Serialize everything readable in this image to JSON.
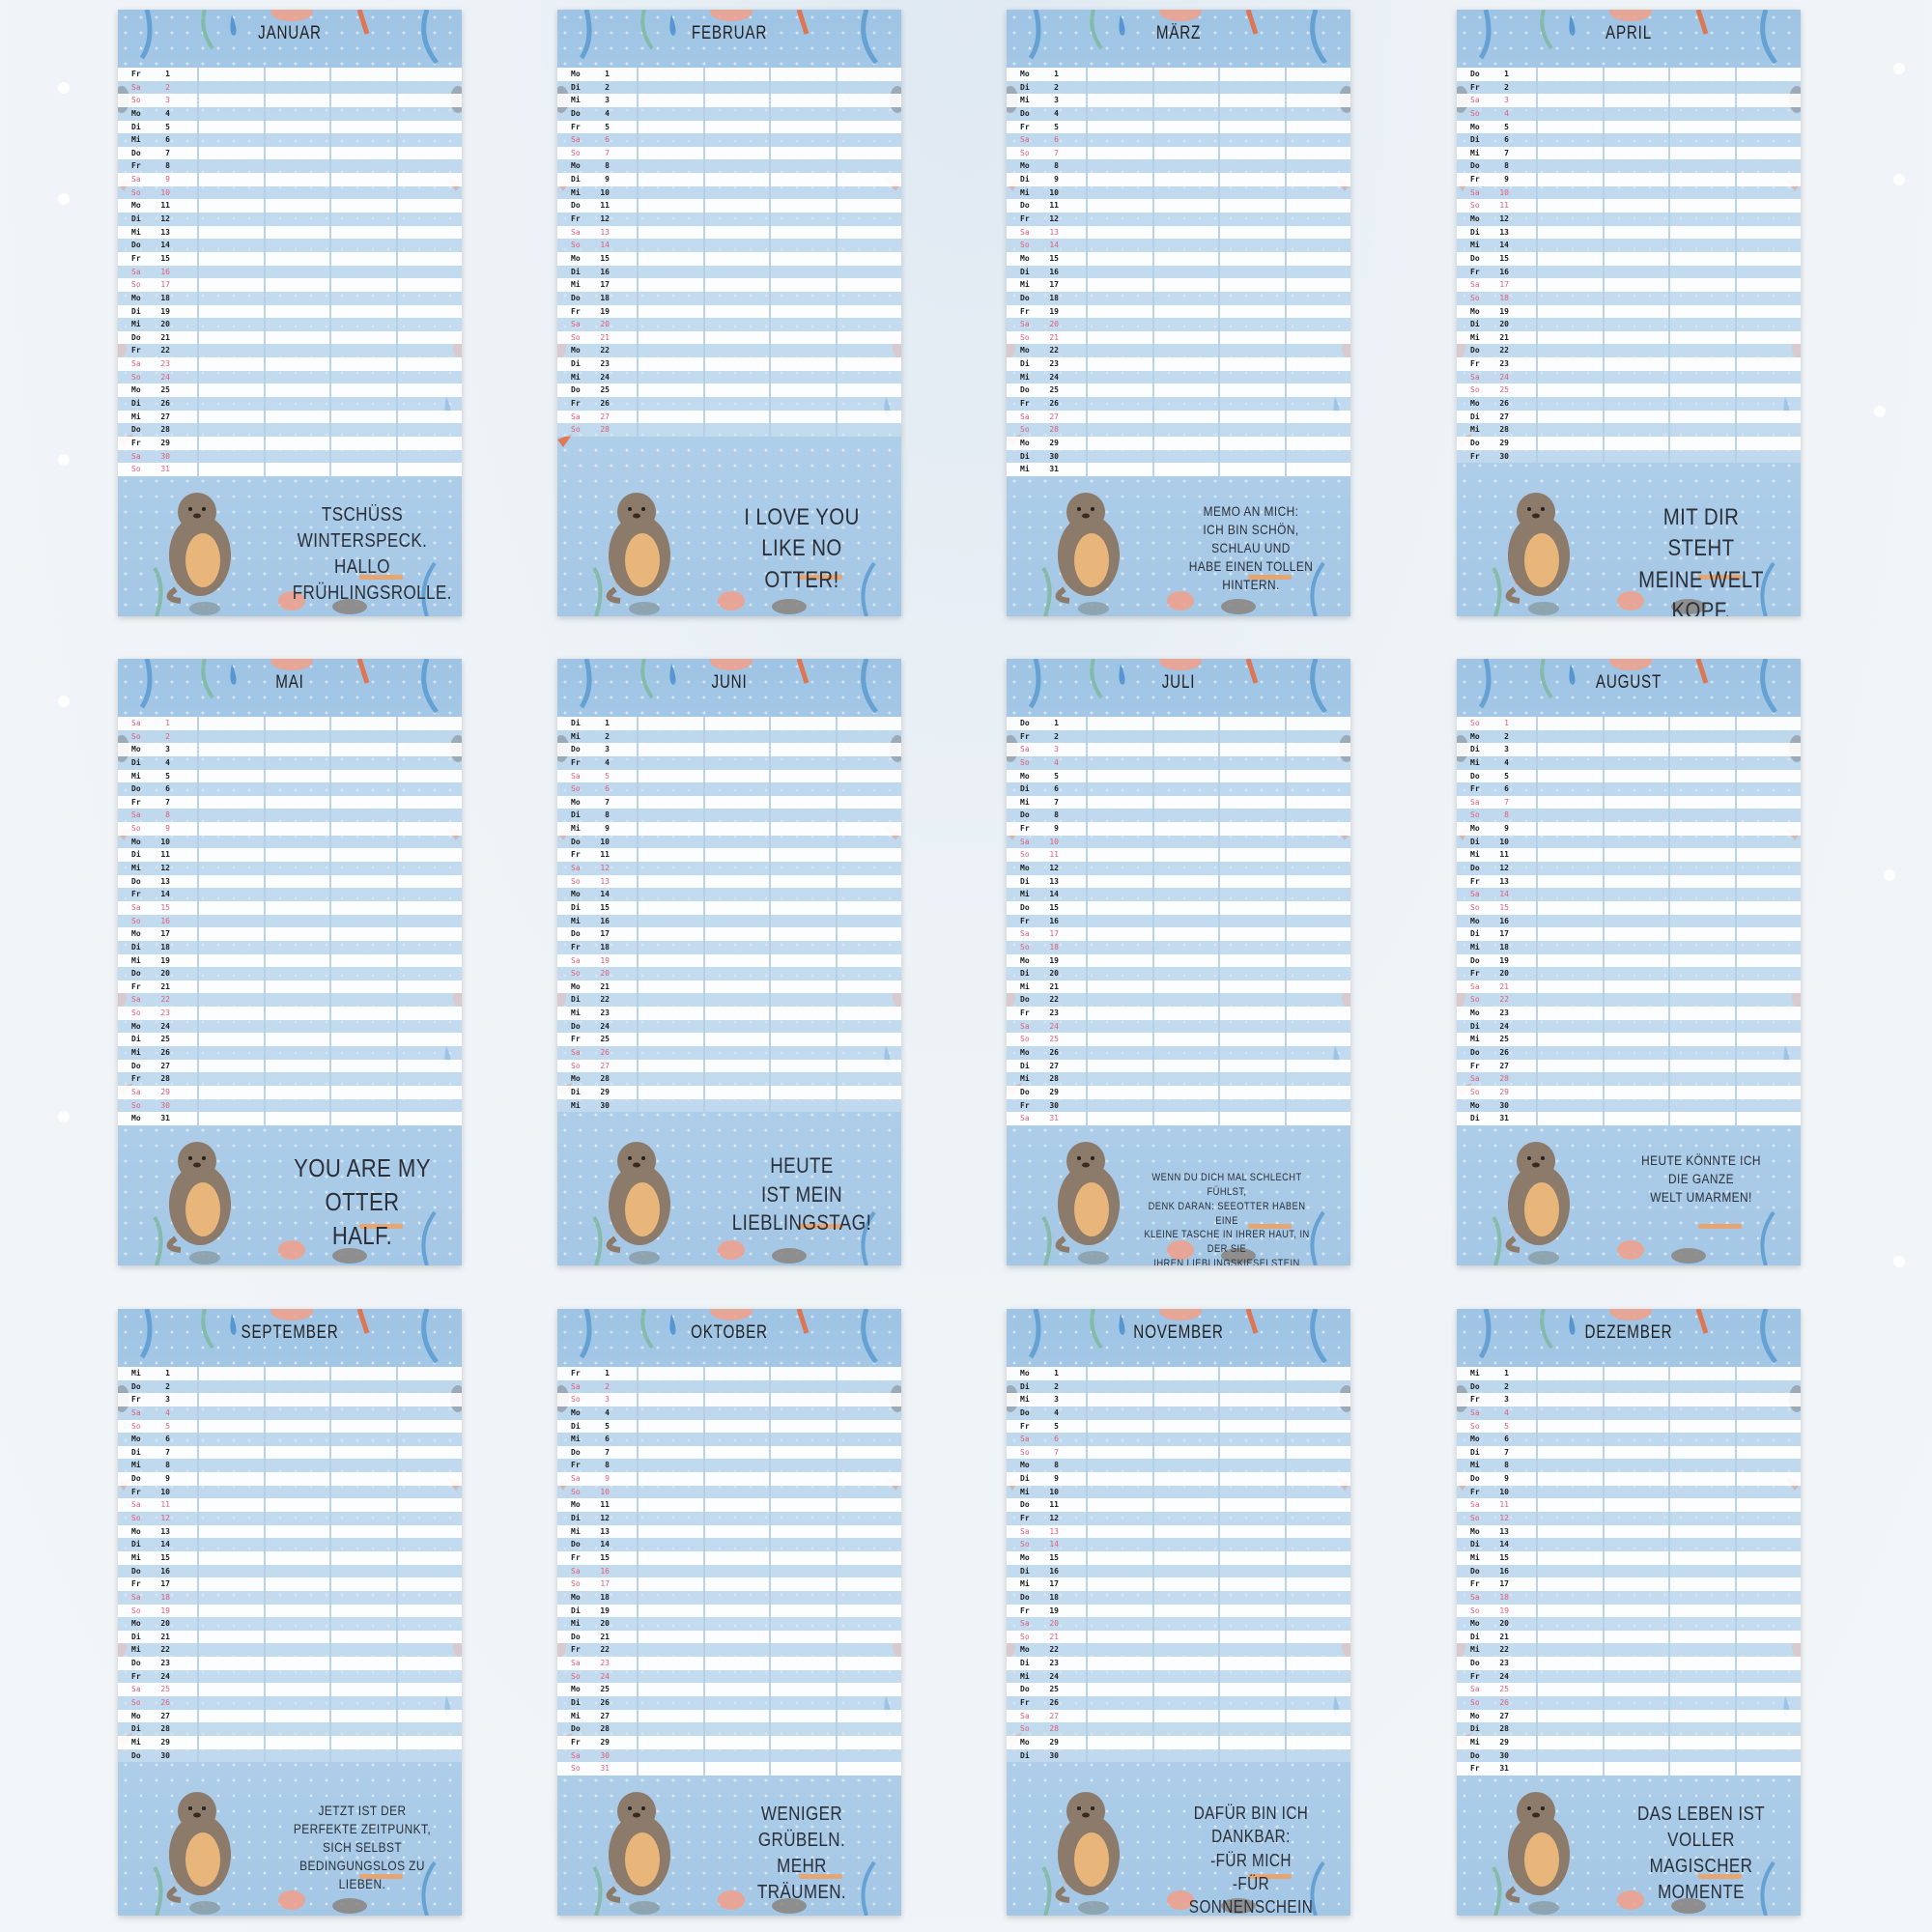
{
  "year_weekdays": [
    "Mo",
    "Di",
    "Mi",
    "Do",
    "Fr",
    "Sa",
    "So"
  ],
  "colors": {
    "weekend": "#e0607a",
    "weekday": "#222222",
    "page_bg": "#a9cbe7",
    "stripe": "#ffffff"
  },
  "months": [
    {
      "name": "JANUAR",
      "start": 4,
      "days": 31,
      "quote": "TSCHÜSS WINTERSPECK.\nHALLO FRÜHLINGSROLLE.",
      "otter": "otter-standing-icon"
    },
    {
      "name": "FEBRUAR",
      "start": 0,
      "days": 28,
      "quote": "I LOVE YOU\nLIKE NO OTTER!",
      "otter": "two-otters-icon"
    },
    {
      "name": "MÄRZ",
      "start": 0,
      "days": 31,
      "quote": "MEMO AN MICH:\nICH BIN SCHÖN, SCHLAU UND\nHABE EINEN TOLLEN HINTERN.",
      "otter": "otter-with-flower-icon"
    },
    {
      "name": "APRIL",
      "start": 3,
      "days": 30,
      "quote": "MIT DIR STEHT\nMEINE WELT KOPF.",
      "otter": "otter-upside-down-icon"
    },
    {
      "name": "MAI",
      "start": 5,
      "days": 31,
      "quote": "YOU ARE MY\nOTTER HALF.",
      "otter": "otter-heart-icon"
    },
    {
      "name": "JUNI",
      "start": 1,
      "days": 30,
      "quote": "HEUTE\nIST MEIN\nLIEBLINGSTAG!",
      "otter": "otter-swimming-icon"
    },
    {
      "name": "JULI",
      "start": 3,
      "days": 31,
      "quote": "WENN DU DICH MAL SCHLECHT FÜHLST,\nDENK DARAN: SEEOTTER HABEN EINE\nKLEINE TASCHE IN IHRER HAUT, IN DER SIE\nIHREN LIEBLINGSKIESELSTEIN AUFBEWAHREN.",
      "otter": "otter-sea-icon"
    },
    {
      "name": "AUGUST",
      "start": 6,
      "days": 31,
      "quote": "HEUTE KÖNNTE ICH\nDIE GANZE\nWELT UMARMEN!",
      "otter": "otter-hugging-icon"
    },
    {
      "name": "SEPTEMBER",
      "start": 2,
      "days": 30,
      "quote": "JETZT IST DER\nPERFEKTE ZEITPUNKT,\nSICH SELBST\nBEDINGUNGSLOS ZU LIEBEN.",
      "otter": "otter-with-heart-icon"
    },
    {
      "name": "OKTOBER",
      "start": 4,
      "days": 31,
      "quote": "WENIGER GRÜBELN.\nMEHR TRÄUMEN.",
      "otter": "otter-floating-icon"
    },
    {
      "name": "NOVEMBER",
      "start": 0,
      "days": 30,
      "quote": "DAFÜR BIN ICH DANKBAR:\n-FÜR MICH\n-FÜR SONNENSCHEIN\n-FÜR POMMES",
      "otter": "otter-flower-crown-icon"
    },
    {
      "name": "DEZEMBER",
      "start": 2,
      "days": 31,
      "quote": "DAS LEBEN IST\nVOLLER MAGISCHER\nMOMENTE",
      "otter": "otter-with-baby-icon"
    }
  ]
}
